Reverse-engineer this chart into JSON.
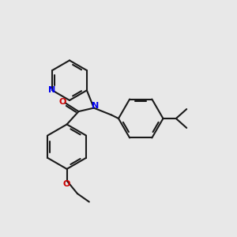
{
  "bg_color": "#e8e8e8",
  "bond_color": "#1a1a1a",
  "N_color": "#0000ee",
  "O_color": "#cc0000",
  "linewidth": 1.5,
  "figsize": [
    3.0,
    3.0
  ],
  "dpi": 100,
  "xlim": [
    0,
    10
  ],
  "ylim": [
    0,
    10
  ]
}
